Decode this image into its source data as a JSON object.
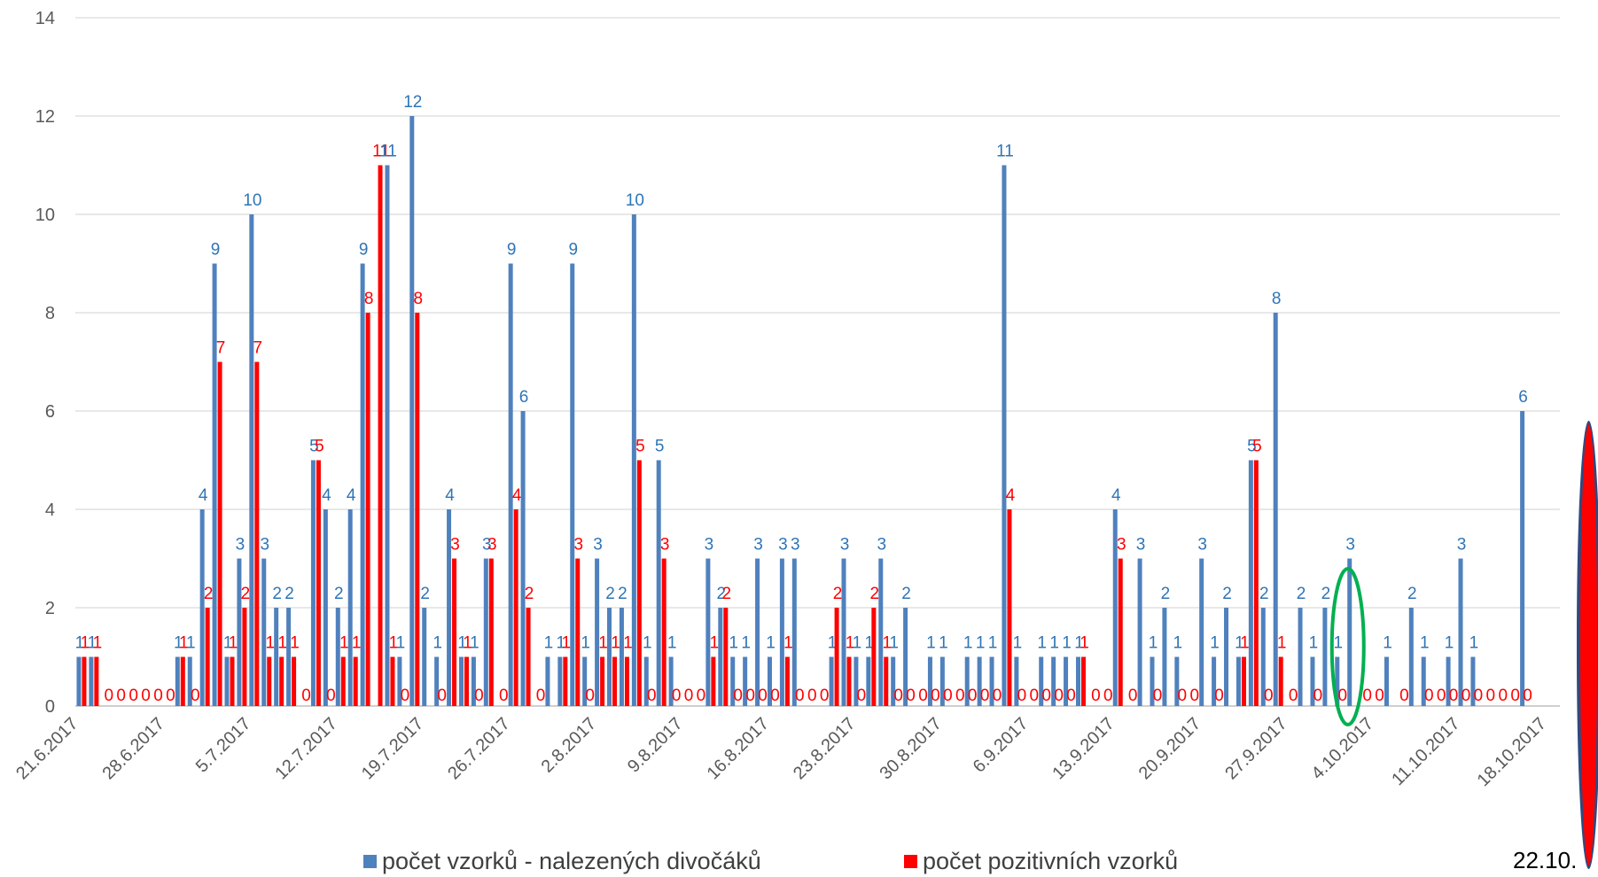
{
  "chart_data": {
    "type": "bar",
    "colors": {
      "blue": "#4f81bd",
      "red": "#ff0000",
      "blue_label": "#2e75b6",
      "grid": "#d9d9d9",
      "axis_text": "#595959"
    },
    "ylim": [
      0,
      14
    ],
    "yticks": [
      0,
      2,
      4,
      6,
      8,
      10,
      12,
      14
    ],
    "x_start": "21.6.2017",
    "num_days": 123,
    "xtick_labels": [
      "21.6.2017",
      "28.6.2017",
      "5.7.2017",
      "12.7.2017",
      "19.7.2017",
      "26.7.2017",
      "2.8.2017",
      "9.8.2017",
      "16.8.2017",
      "23.8.2017",
      "30.8.2017",
      "6.9.2017",
      "13.9.2017",
      "20.9.2017",
      "27.9.2017",
      "4.10.2017",
      "11.10.2017",
      "18.10.2017"
    ],
    "series": [
      {
        "name": "počet vzorků -  nalezených divočáků",
        "color": "#4f81bd",
        "values": [
          1,
          1,
          null,
          null,
          null,
          null,
          null,
          null,
          1,
          1,
          4,
          9,
          1,
          3,
          10,
          3,
          2,
          2,
          null,
          5,
          4,
          2,
          4,
          9,
          null,
          11,
          1,
          12,
          2,
          1,
          4,
          1,
          1,
          3,
          null,
          9,
          6,
          null,
          1,
          1,
          9,
          1,
          3,
          2,
          2,
          10,
          1,
          5,
          1,
          null,
          null,
          3,
          2,
          1,
          1,
          3,
          1,
          3,
          3,
          null,
          null,
          1,
          3,
          1,
          1,
          3,
          1,
          2,
          null,
          1,
          1,
          null,
          1,
          1,
          1,
          11,
          1,
          null,
          1,
          1,
          1,
          1,
          null,
          null,
          4,
          null,
          3,
          1,
          2,
          1,
          null,
          3,
          1,
          2,
          1,
          5,
          2,
          8,
          null,
          2,
          1,
          2,
          1,
          3,
          null,
          null,
          1,
          null,
          2,
          1,
          null,
          1,
          3,
          1,
          null,
          null,
          null,
          6
        ]
      },
      {
        "name": "počet pozitivních vzorků",
        "color": "#ff0000",
        "values": [
          1,
          1,
          0,
          0,
          0,
          0,
          0,
          0,
          1,
          0,
          2,
          7,
          1,
          2,
          7,
          1,
          1,
          1,
          0,
          5,
          0,
          1,
          1,
          8,
          11,
          1,
          0,
          8,
          null,
          0,
          3,
          1,
          0,
          3,
          0,
          4,
          2,
          0,
          null,
          1,
          3,
          0,
          1,
          1,
          1,
          5,
          0,
          3,
          0,
          0,
          0,
          1,
          2,
          0,
          0,
          0,
          0,
          1,
          0,
          0,
          0,
          2,
          1,
          0,
          2,
          1,
          0,
          0,
          0,
          0,
          0,
          0,
          0,
          0,
          0,
          4,
          0,
          0,
          0,
          0,
          0,
          1,
          0,
          0,
          3,
          0,
          null,
          0,
          null,
          0,
          0,
          null,
          0,
          null,
          1,
          5,
          0,
          1,
          0,
          null,
          0,
          null,
          0,
          null,
          0,
          0,
          null,
          0,
          null,
          0,
          0,
          0,
          0,
          0,
          0,
          0,
          0,
          0
        ]
      }
    ]
  },
  "legend": {
    "blue_label": "počet vzorků -  nalezených divočáků",
    "red_label": "počet pozitivních vzorků"
  },
  "corner_date": "22.10."
}
